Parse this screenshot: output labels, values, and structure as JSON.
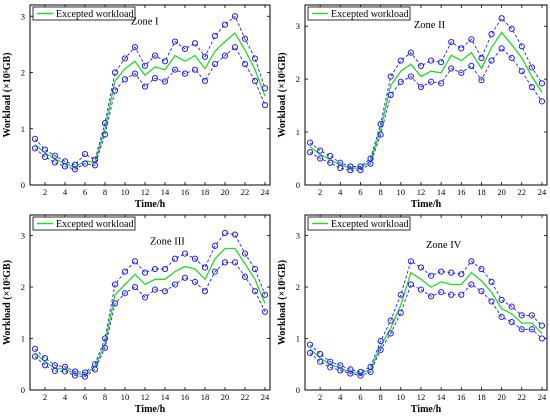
{
  "colors": {
    "expected": "#22dd22",
    "bound": "#2222ee",
    "axis": "#000000"
  },
  "chart_data": [
    {
      "type": "line",
      "annotation": "Zone I",
      "xlabel": "Time/h",
      "ylabel": "Workload (×10⁵GB)",
      "xlim": [
        0.5,
        24.5
      ],
      "ylim": [
        0,
        3.2
      ],
      "xticks": [
        2,
        4,
        6,
        8,
        10,
        12,
        14,
        16,
        18,
        20,
        22,
        24
      ],
      "yticks": [
        0,
        1,
        2,
        3
      ],
      "legend": "top-left",
      "x": [
        1,
        2,
        3,
        4,
        5,
        6,
        7,
        8,
        9,
        10,
        11,
        12,
        13,
        14,
        15,
        16,
        17,
        18,
        19,
        20,
        21,
        22,
        23,
        24
      ],
      "series": [
        {
          "name": "Excepted workload",
          "style": "expected",
          "values": [
            0.72,
            0.57,
            0.46,
            0.38,
            0.32,
            0.43,
            0.4,
            1.0,
            1.85,
            2.07,
            2.2,
            1.95,
            2.1,
            2.05,
            2.3,
            2.2,
            2.3,
            2.07,
            2.38,
            2.55,
            2.7,
            2.4,
            2.05,
            1.58
          ]
        },
        {
          "style": "upper",
          "values": [
            0.82,
            0.63,
            0.52,
            0.42,
            0.36,
            0.55,
            0.45,
            1.1,
            2.0,
            2.25,
            2.45,
            2.12,
            2.3,
            2.2,
            2.55,
            2.42,
            2.52,
            2.28,
            2.65,
            2.85,
            3.0,
            2.6,
            2.25,
            1.72
          ]
        },
        {
          "style": "lower",
          "values": [
            0.65,
            0.5,
            0.4,
            0.33,
            0.28,
            0.38,
            0.35,
            0.9,
            1.68,
            1.88,
            1.98,
            1.75,
            1.9,
            1.84,
            2.05,
            1.98,
            2.05,
            1.85,
            2.15,
            2.3,
            2.45,
            2.15,
            1.85,
            1.42
          ]
        }
      ]
    },
    {
      "type": "line",
      "annotation": "Zone II",
      "xlabel": "Time/h",
      "ylabel": "Workload (×10⁵GB)",
      "xlim": [
        0.5,
        24.5
      ],
      "ylim": [
        0,
        3.4
      ],
      "xticks": [
        2,
        4,
        6,
        8,
        10,
        12,
        14,
        16,
        18,
        20,
        22,
        24
      ],
      "yticks": [
        0,
        1,
        2,
        3
      ],
      "legend": "top-left",
      "x": [
        1,
        2,
        3,
        4,
        5,
        6,
        7,
        8,
        9,
        10,
        11,
        12,
        13,
        14,
        15,
        16,
        17,
        18,
        19,
        20,
        21,
        22,
        23,
        24
      ],
      "series": [
        {
          "name": "Excepted workload",
          "style": "expected",
          "values": [
            0.72,
            0.58,
            0.48,
            0.38,
            0.32,
            0.32,
            0.45,
            1.05,
            1.88,
            2.15,
            2.28,
            2.05,
            2.15,
            2.12,
            2.45,
            2.35,
            2.5,
            2.2,
            2.6,
            2.88,
            2.65,
            2.4,
            2.05,
            1.75
          ]
        },
        {
          "style": "upper",
          "values": [
            0.8,
            0.65,
            0.55,
            0.42,
            0.35,
            0.35,
            0.5,
            1.15,
            2.05,
            2.35,
            2.5,
            2.25,
            2.35,
            2.32,
            2.7,
            2.58,
            2.75,
            2.4,
            2.85,
            3.15,
            2.95,
            2.62,
            2.22,
            1.92
          ]
        },
        {
          "style": "lower",
          "values": [
            0.62,
            0.5,
            0.42,
            0.32,
            0.28,
            0.28,
            0.4,
            0.95,
            1.7,
            1.95,
            2.05,
            1.85,
            1.95,
            1.92,
            2.2,
            2.12,
            2.25,
            1.98,
            2.35,
            2.58,
            2.4,
            2.15,
            1.85,
            1.58
          ]
        }
      ]
    },
    {
      "type": "line",
      "annotation": "Zone III",
      "xlabel": "Time/h",
      "ylabel": "Workload (×10⁵GB)",
      "xlim": [
        0.5,
        24.5
      ],
      "ylim": [
        0,
        3.4
      ],
      "xticks": [
        2,
        4,
        6,
        8,
        10,
        12,
        14,
        16,
        18,
        20,
        22,
        24
      ],
      "yticks": [
        0,
        1,
        2,
        3
      ],
      "legend": "top-left",
      "x": [
        1,
        2,
        3,
        4,
        5,
        6,
        7,
        8,
        9,
        10,
        11,
        12,
        13,
        14,
        15,
        16,
        17,
        18,
        19,
        20,
        21,
        22,
        23,
        24
      ],
      "series": [
        {
          "name": "Excepted workload",
          "style": "expected",
          "values": [
            0.72,
            0.55,
            0.42,
            0.4,
            0.32,
            0.3,
            0.45,
            0.9,
            1.85,
            2.05,
            2.25,
            2.05,
            2.15,
            2.15,
            2.3,
            2.4,
            2.35,
            2.15,
            2.55,
            2.75,
            2.75,
            2.45,
            2.15,
            1.68
          ]
        },
        {
          "style": "upper",
          "values": [
            0.8,
            0.62,
            0.48,
            0.45,
            0.36,
            0.34,
            0.5,
            1.0,
            2.05,
            2.3,
            2.5,
            2.28,
            2.35,
            2.35,
            2.55,
            2.65,
            2.55,
            2.38,
            2.8,
            3.05,
            3.02,
            2.65,
            2.35,
            1.85
          ]
        },
        {
          "style": "lower",
          "values": [
            0.65,
            0.48,
            0.37,
            0.36,
            0.28,
            0.26,
            0.4,
            0.82,
            1.68,
            1.88,
            2.0,
            1.8,
            1.95,
            1.92,
            2.05,
            2.18,
            2.1,
            1.92,
            2.3,
            2.48,
            2.48,
            2.2,
            1.92,
            1.52
          ]
        }
      ]
    },
    {
      "type": "line",
      "annotation": "Zone IV",
      "xlabel": "Time/h",
      "ylabel": "Workload (×10⁵GB)",
      "xlim": [
        0.5,
        24.5
      ],
      "ylim": [
        0,
        3.4
      ],
      "xticks": [
        2,
        4,
        6,
        8,
        10,
        12,
        14,
        16,
        18,
        20,
        22,
        24
      ],
      "yticks": [
        0,
        1,
        2,
        3
      ],
      "legend": "top-left",
      "x": [
        1,
        2,
        3,
        4,
        5,
        6,
        7,
        8,
        9,
        10,
        11,
        12,
        13,
        14,
        15,
        16,
        17,
        18,
        19,
        20,
        21,
        22,
        23,
        24
      ],
      "series": [
        {
          "name": "Excepted workload",
          "style": "expected",
          "values": [
            0.8,
            0.62,
            0.5,
            0.42,
            0.35,
            0.32,
            0.4,
            0.85,
            1.2,
            1.65,
            2.28,
            2.15,
            2.0,
            2.1,
            2.05,
            2.05,
            2.28,
            2.12,
            1.9,
            1.58,
            1.48,
            1.3,
            1.3,
            1.1
          ]
        },
        {
          "style": "upper",
          "values": [
            0.88,
            0.7,
            0.55,
            0.48,
            0.4,
            0.35,
            0.45,
            0.95,
            1.35,
            1.85,
            2.5,
            2.38,
            2.22,
            2.3,
            2.28,
            2.25,
            2.5,
            2.35,
            2.1,
            1.75,
            1.62,
            1.45,
            1.45,
            1.25
          ]
        },
        {
          "style": "lower",
          "values": [
            0.72,
            0.55,
            0.44,
            0.38,
            0.32,
            0.28,
            0.35,
            0.78,
            1.1,
            1.5,
            2.05,
            1.95,
            1.82,
            1.9,
            1.85,
            1.85,
            2.05,
            1.92,
            1.72,
            1.42,
            1.32,
            1.18,
            1.18,
            1.0
          ]
        }
      ]
    }
  ]
}
